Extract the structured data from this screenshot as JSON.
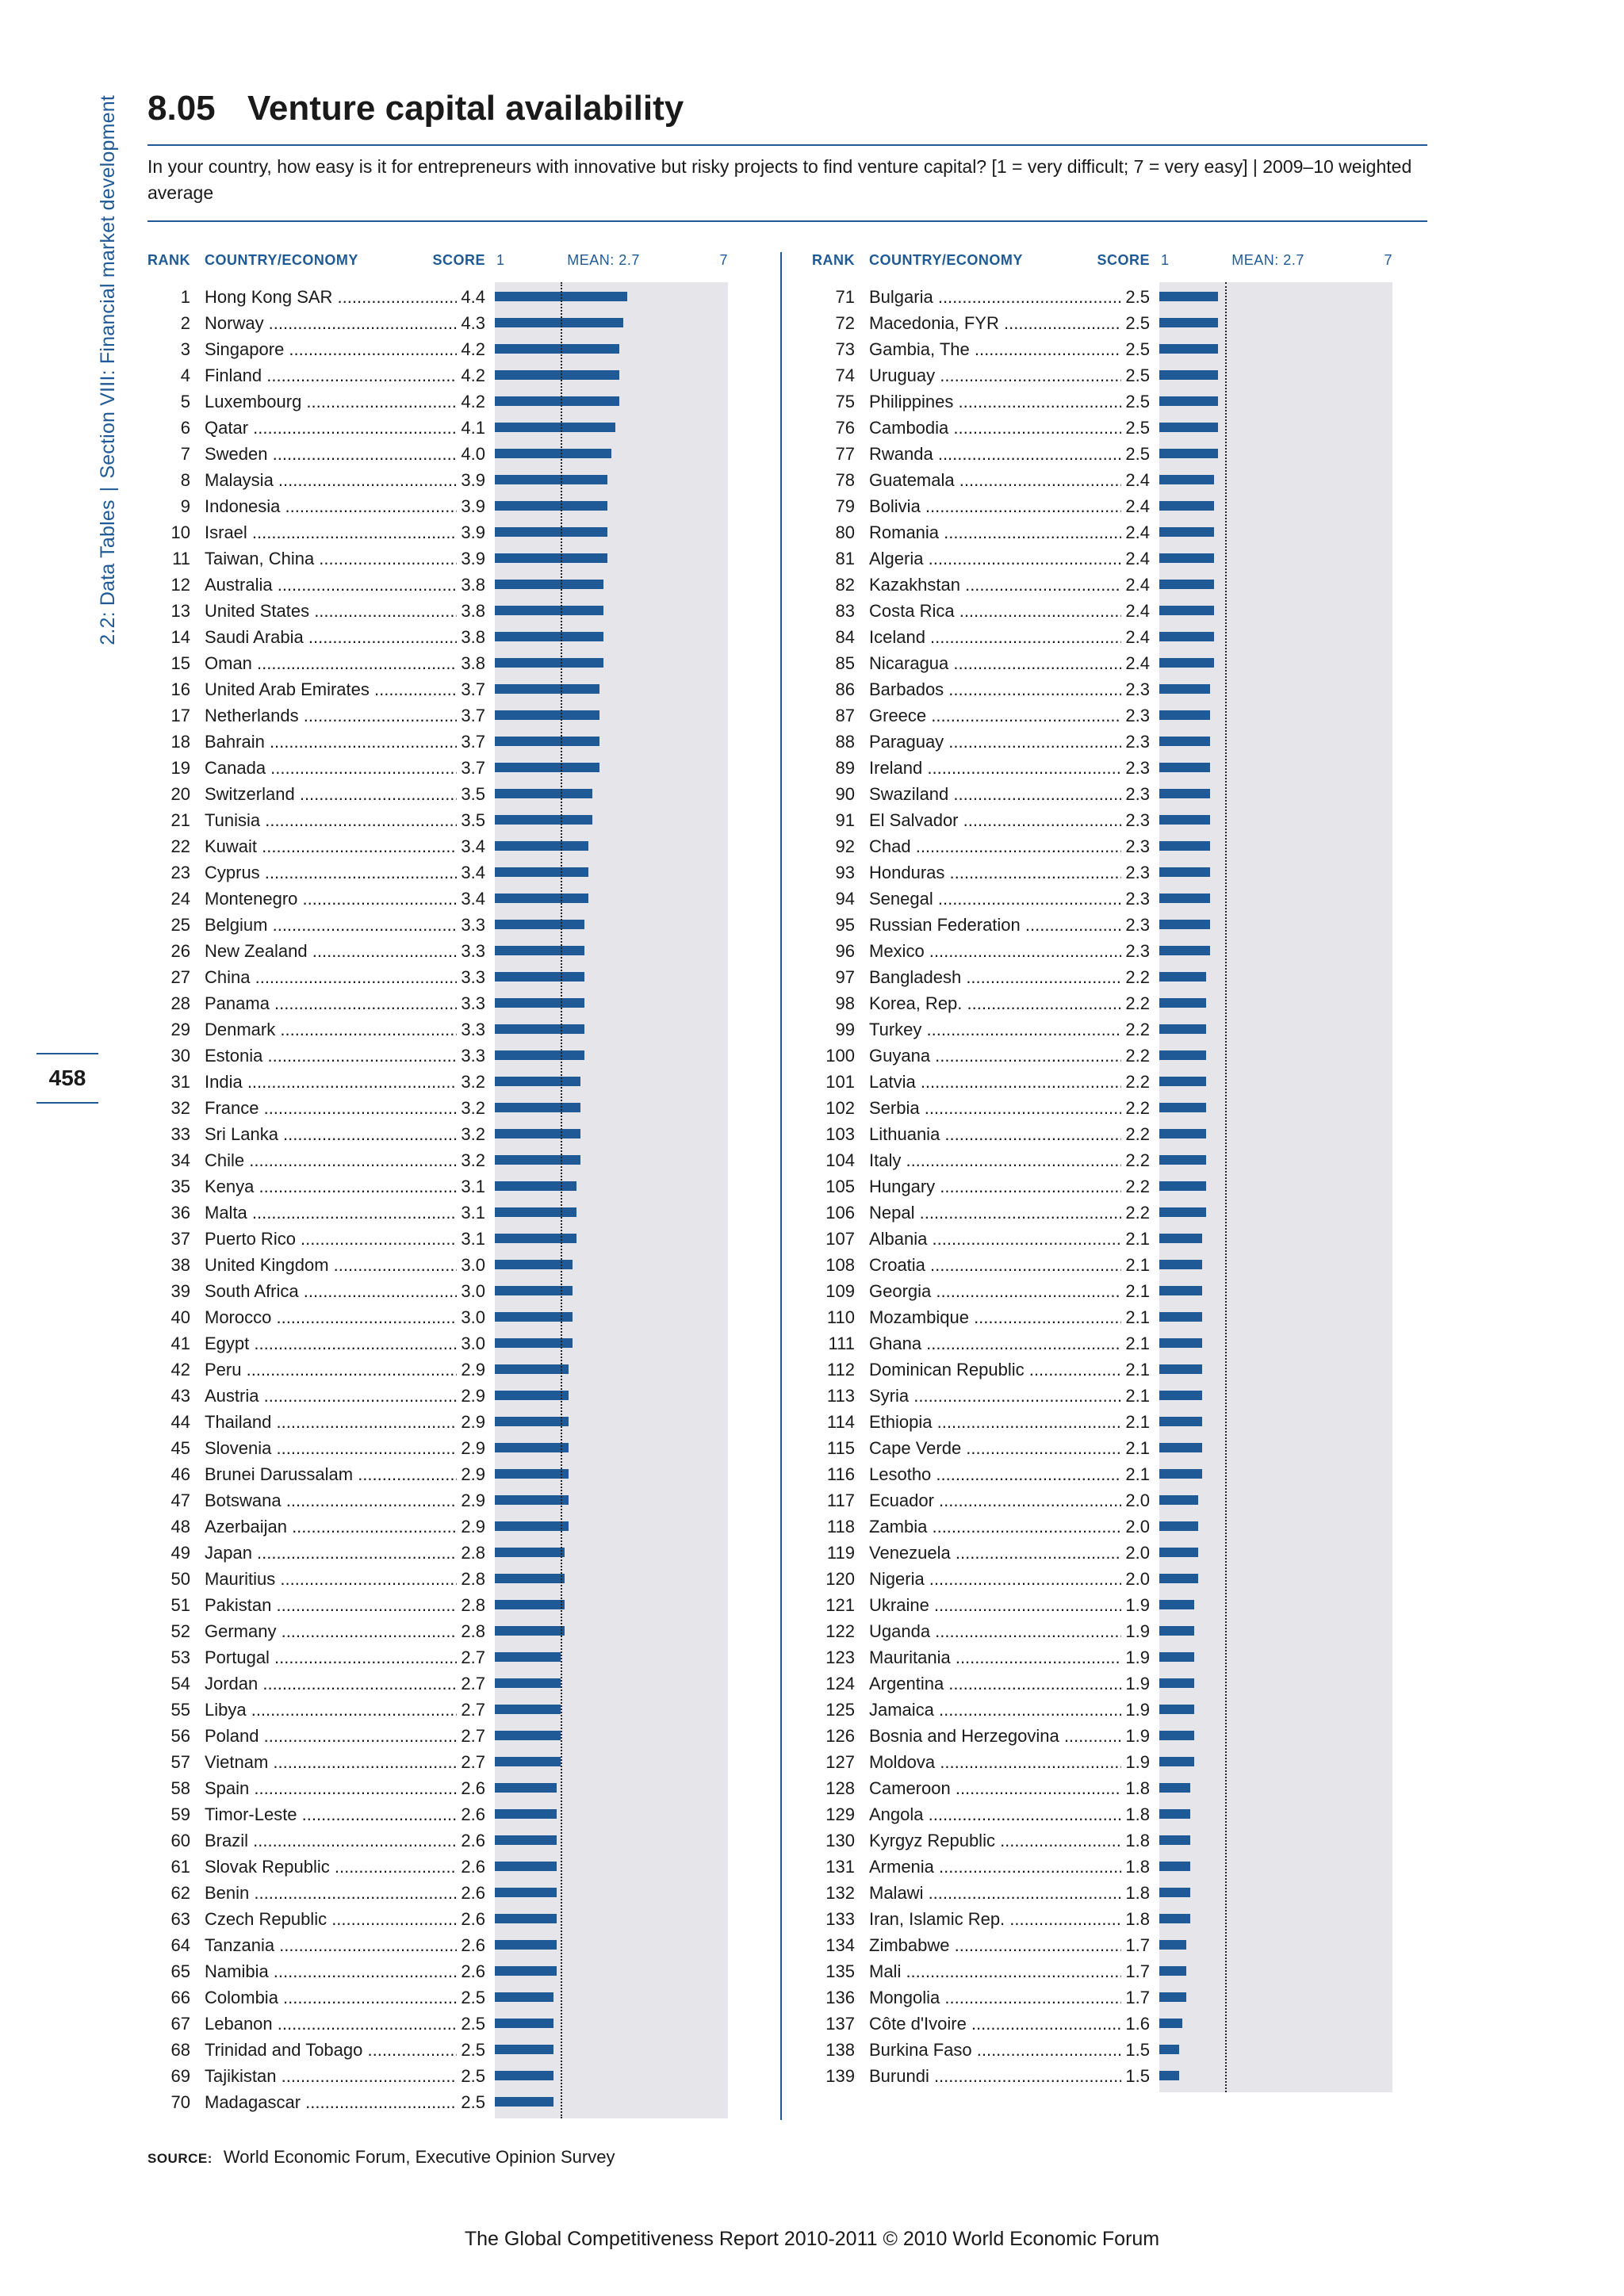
{
  "header": {
    "side_section": "2.2: Data Tables",
    "side_divider": "|",
    "side_chapter": "Section VIII: Financial market development",
    "page_number": "458",
    "indicator_number": "8.05",
    "title": "Venture capital availability",
    "question": "In your country, how easy is it for entrepreneurs with innovative but risky projects to find venture capital? [1 = very difficult; 7 = very easy]  |  2009–10 weighted average"
  },
  "table_header": {
    "rank": "RANK",
    "country": "COUNTRY/ECONOMY",
    "score": "SCORE",
    "scale_min": "1",
    "mean": "MEAN: 2.7",
    "scale_max": "7"
  },
  "chart_data": {
    "type": "bar",
    "orientation": "horizontal",
    "xlim": [
      1,
      7
    ],
    "mean": 2.7,
    "rows": [
      {
        "rank": "1",
        "country": "Hong Kong SAR",
        "score": 4.4
      },
      {
        "rank": "2",
        "country": "Norway",
        "score": 4.3
      },
      {
        "rank": "3",
        "country": "Singapore",
        "score": 4.2
      },
      {
        "rank": "4",
        "country": "Finland",
        "score": 4.2
      },
      {
        "rank": "5",
        "country": "Luxembourg",
        "score": 4.2
      },
      {
        "rank": "6",
        "country": "Qatar",
        "score": 4.1
      },
      {
        "rank": "7",
        "country": "Sweden",
        "score": 4.0
      },
      {
        "rank": "8",
        "country": "Malaysia",
        "score": 3.9
      },
      {
        "rank": "9",
        "country": "Indonesia",
        "score": 3.9
      },
      {
        "rank": "10",
        "country": "Israel",
        "score": 3.9
      },
      {
        "rank": "11",
        "country": "Taiwan, China",
        "score": 3.9
      },
      {
        "rank": "12",
        "country": "Australia",
        "score": 3.8
      },
      {
        "rank": "13",
        "country": "United States",
        "score": 3.8
      },
      {
        "rank": "14",
        "country": "Saudi Arabia",
        "score": 3.8
      },
      {
        "rank": "15",
        "country": "Oman",
        "score": 3.8
      },
      {
        "rank": "16",
        "country": "United Arab Emirates",
        "score": 3.7
      },
      {
        "rank": "17",
        "country": "Netherlands",
        "score": 3.7
      },
      {
        "rank": "18",
        "country": "Bahrain",
        "score": 3.7
      },
      {
        "rank": "19",
        "country": "Canada",
        "score": 3.7
      },
      {
        "rank": "20",
        "country": "Switzerland",
        "score": 3.5
      },
      {
        "rank": "21",
        "country": "Tunisia",
        "score": 3.5
      },
      {
        "rank": "22",
        "country": "Kuwait",
        "score": 3.4
      },
      {
        "rank": "23",
        "country": "Cyprus",
        "score": 3.4
      },
      {
        "rank": "24",
        "country": "Montenegro",
        "score": 3.4
      },
      {
        "rank": "25",
        "country": "Belgium",
        "score": 3.3
      },
      {
        "rank": "26",
        "country": "New Zealand",
        "score": 3.3
      },
      {
        "rank": "27",
        "country": "China",
        "score": 3.3
      },
      {
        "rank": "28",
        "country": "Panama",
        "score": 3.3
      },
      {
        "rank": "29",
        "country": "Denmark",
        "score": 3.3
      },
      {
        "rank": "30",
        "country": "Estonia",
        "score": 3.3
      },
      {
        "rank": "31",
        "country": "India",
        "score": 3.2
      },
      {
        "rank": "32",
        "country": "France",
        "score": 3.2
      },
      {
        "rank": "33",
        "country": "Sri Lanka",
        "score": 3.2
      },
      {
        "rank": "34",
        "country": "Chile",
        "score": 3.2
      },
      {
        "rank": "35",
        "country": "Kenya",
        "score": 3.1
      },
      {
        "rank": "36",
        "country": "Malta",
        "score": 3.1
      },
      {
        "rank": "37",
        "country": "Puerto Rico",
        "score": 3.1
      },
      {
        "rank": "38",
        "country": "United Kingdom",
        "score": 3.0
      },
      {
        "rank": "39",
        "country": "South Africa",
        "score": 3.0
      },
      {
        "rank": "40",
        "country": "Morocco",
        "score": 3.0
      },
      {
        "rank": "41",
        "country": "Egypt",
        "score": 3.0
      },
      {
        "rank": "42",
        "country": "Peru",
        "score": 2.9
      },
      {
        "rank": "43",
        "country": "Austria",
        "score": 2.9
      },
      {
        "rank": "44",
        "country": "Thailand",
        "score": 2.9
      },
      {
        "rank": "45",
        "country": "Slovenia",
        "score": 2.9
      },
      {
        "rank": "46",
        "country": "Brunei Darussalam",
        "score": 2.9
      },
      {
        "rank": "47",
        "country": "Botswana",
        "score": 2.9
      },
      {
        "rank": "48",
        "country": "Azerbaijan",
        "score": 2.9
      },
      {
        "rank": "49",
        "country": "Japan",
        "score": 2.8
      },
      {
        "rank": "50",
        "country": "Mauritius",
        "score": 2.8
      },
      {
        "rank": "51",
        "country": "Pakistan",
        "score": 2.8
      },
      {
        "rank": "52",
        "country": "Germany",
        "score": 2.8
      },
      {
        "rank": "53",
        "country": "Portugal",
        "score": 2.7
      },
      {
        "rank": "54",
        "country": "Jordan",
        "score": 2.7
      },
      {
        "rank": "55",
        "country": "Libya",
        "score": 2.7
      },
      {
        "rank": "56",
        "country": "Poland",
        "score": 2.7
      },
      {
        "rank": "57",
        "country": "Vietnam",
        "score": 2.7
      },
      {
        "rank": "58",
        "country": "Spain",
        "score": 2.6
      },
      {
        "rank": "59",
        "country": "Timor-Leste",
        "score": 2.6
      },
      {
        "rank": "60",
        "country": "Brazil",
        "score": 2.6
      },
      {
        "rank": "61",
        "country": "Slovak Republic",
        "score": 2.6
      },
      {
        "rank": "62",
        "country": "Benin",
        "score": 2.6
      },
      {
        "rank": "63",
        "country": "Czech Republic",
        "score": 2.6
      },
      {
        "rank": "64",
        "country": "Tanzania",
        "score": 2.6
      },
      {
        "rank": "65",
        "country": "Namibia",
        "score": 2.6
      },
      {
        "rank": "66",
        "country": "Colombia",
        "score": 2.5
      },
      {
        "rank": "67",
        "country": "Lebanon",
        "score": 2.5
      },
      {
        "rank": "68",
        "country": "Trinidad and Tobago",
        "score": 2.5
      },
      {
        "rank": "69",
        "country": "Tajikistan",
        "score": 2.5
      },
      {
        "rank": "70",
        "country": "Madagascar",
        "score": 2.5
      },
      {
        "rank": "71",
        "country": "Bulgaria",
        "score": 2.5
      },
      {
        "rank": "72",
        "country": "Macedonia, FYR",
        "score": 2.5
      },
      {
        "rank": "73",
        "country": "Gambia, The",
        "score": 2.5
      },
      {
        "rank": "74",
        "country": "Uruguay",
        "score": 2.5
      },
      {
        "rank": "75",
        "country": "Philippines",
        "score": 2.5
      },
      {
        "rank": "76",
        "country": "Cambodia",
        "score": 2.5
      },
      {
        "rank": "77",
        "country": "Rwanda",
        "score": 2.5
      },
      {
        "rank": "78",
        "country": "Guatemala",
        "score": 2.4
      },
      {
        "rank": "79",
        "country": "Bolivia",
        "score": 2.4
      },
      {
        "rank": "80",
        "country": "Romania",
        "score": 2.4
      },
      {
        "rank": "81",
        "country": "Algeria",
        "score": 2.4
      },
      {
        "rank": "82",
        "country": "Kazakhstan",
        "score": 2.4
      },
      {
        "rank": "83",
        "country": "Costa Rica",
        "score": 2.4
      },
      {
        "rank": "84",
        "country": "Iceland",
        "score": 2.4
      },
      {
        "rank": "85",
        "country": "Nicaragua",
        "score": 2.4
      },
      {
        "rank": "86",
        "country": "Barbados",
        "score": 2.3
      },
      {
        "rank": "87",
        "country": "Greece",
        "score": 2.3
      },
      {
        "rank": "88",
        "country": "Paraguay",
        "score": 2.3
      },
      {
        "rank": "89",
        "country": "Ireland",
        "score": 2.3
      },
      {
        "rank": "90",
        "country": "Swaziland",
        "score": 2.3
      },
      {
        "rank": "91",
        "country": "El Salvador",
        "score": 2.3
      },
      {
        "rank": "92",
        "country": "Chad",
        "score": 2.3
      },
      {
        "rank": "93",
        "country": "Honduras",
        "score": 2.3
      },
      {
        "rank": "94",
        "country": "Senegal",
        "score": 2.3
      },
      {
        "rank": "95",
        "country": "Russian Federation",
        "score": 2.3
      },
      {
        "rank": "96",
        "country": "Mexico",
        "score": 2.3
      },
      {
        "rank": "97",
        "country": "Bangladesh",
        "score": 2.2
      },
      {
        "rank": "98",
        "country": "Korea, Rep.",
        "score": 2.2
      },
      {
        "rank": "99",
        "country": "Turkey",
        "score": 2.2
      },
      {
        "rank": "100",
        "country": "Guyana",
        "score": 2.2
      },
      {
        "rank": "101",
        "country": "Latvia",
        "score": 2.2
      },
      {
        "rank": "102",
        "country": "Serbia",
        "score": 2.2
      },
      {
        "rank": "103",
        "country": "Lithuania",
        "score": 2.2
      },
      {
        "rank": "104",
        "country": "Italy",
        "score": 2.2
      },
      {
        "rank": "105",
        "country": "Hungary",
        "score": 2.2
      },
      {
        "rank": "106",
        "country": "Nepal",
        "score": 2.2
      },
      {
        "rank": "107",
        "country": "Albania",
        "score": 2.1
      },
      {
        "rank": "108",
        "country": "Croatia",
        "score": 2.1
      },
      {
        "rank": "109",
        "country": "Georgia",
        "score": 2.1
      },
      {
        "rank": "110",
        "country": "Mozambique",
        "score": 2.1
      },
      {
        "rank": "111",
        "country": "Ghana",
        "score": 2.1
      },
      {
        "rank": "112",
        "country": "Dominican Republic",
        "score": 2.1
      },
      {
        "rank": "113",
        "country": "Syria",
        "score": 2.1
      },
      {
        "rank": "114",
        "country": "Ethiopia",
        "score": 2.1
      },
      {
        "rank": "115",
        "country": "Cape Verde",
        "score": 2.1
      },
      {
        "rank": "116",
        "country": "Lesotho",
        "score": 2.1
      },
      {
        "rank": "117",
        "country": "Ecuador",
        "score": 2.0
      },
      {
        "rank": "118",
        "country": "Zambia",
        "score": 2.0
      },
      {
        "rank": "119",
        "country": "Venezuela",
        "score": 2.0
      },
      {
        "rank": "120",
        "country": "Nigeria",
        "score": 2.0
      },
      {
        "rank": "121",
        "country": "Ukraine",
        "score": 1.9
      },
      {
        "rank": "122",
        "country": "Uganda",
        "score": 1.9
      },
      {
        "rank": "123",
        "country": "Mauritania",
        "score": 1.9
      },
      {
        "rank": "124",
        "country": "Argentina",
        "score": 1.9
      },
      {
        "rank": "125",
        "country": "Jamaica",
        "score": 1.9
      },
      {
        "rank": "126",
        "country": "Bosnia and Herzegovina",
        "score": 1.9
      },
      {
        "rank": "127",
        "country": "Moldova",
        "score": 1.9
      },
      {
        "rank": "128",
        "country": "Cameroon",
        "score": 1.8
      },
      {
        "rank": "129",
        "country": "Angola",
        "score": 1.8
      },
      {
        "rank": "130",
        "country": "Kyrgyz Republic",
        "score": 1.8
      },
      {
        "rank": "131",
        "country": "Armenia",
        "score": 1.8
      },
      {
        "rank": "132",
        "country": "Malawi",
        "score": 1.8
      },
      {
        "rank": "133",
        "country": "Iran, Islamic Rep.",
        "score": 1.8
      },
      {
        "rank": "134",
        "country": "Zimbabwe",
        "score": 1.7
      },
      {
        "rank": "135",
        "country": "Mali",
        "score": 1.7
      },
      {
        "rank": "136",
        "country": "Mongolia",
        "score": 1.7
      },
      {
        "rank": "137",
        "country": "Côte d'Ivoire",
        "score": 1.6
      },
      {
        "rank": "138",
        "country": "Burkina Faso",
        "score": 1.5
      },
      {
        "rank": "139",
        "country": "Burundi",
        "score": 1.5
      }
    ]
  },
  "colors": {
    "bar": "#1f5a96",
    "band": "#e6e6ea",
    "accent": "#1f5a96"
  },
  "source": {
    "label": "SOURCE:",
    "text": "World Economic Forum, Executive Opinion Survey"
  },
  "footer": "The Global Competitiveness Report 2010-2011 © 2010 World Economic Forum"
}
